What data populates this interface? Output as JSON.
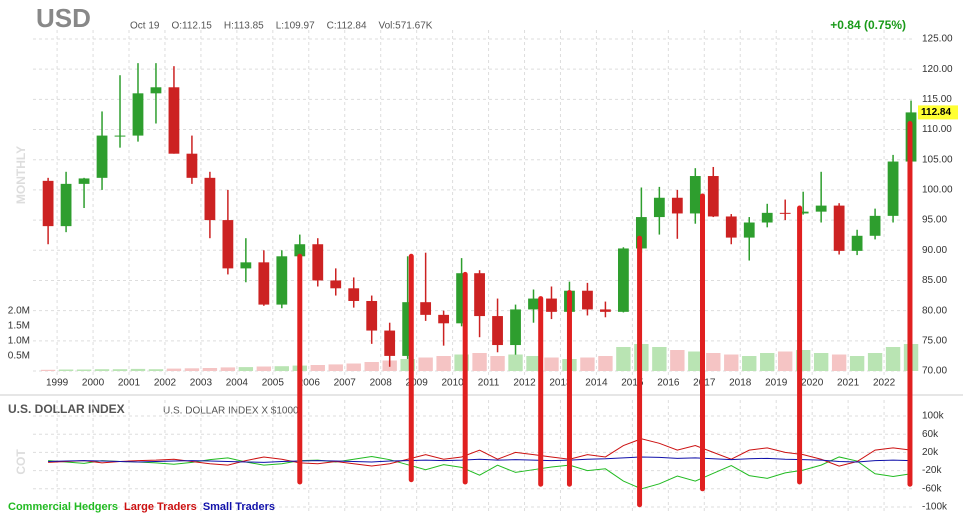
{
  "chart_data": {
    "type": "candlestick",
    "title": "USD",
    "header": [
      "Oct 19",
      "O:112.15",
      "H:113.85",
      "L:109.97",
      "C:112.84",
      "Vol:571.67K"
    ],
    "change": "+0.84 (0.75%)",
    "period_label": "MONTHLY",
    "last_price": 112.84,
    "up_color": "#2e9e2e",
    "down_color": "#cc2222",
    "x": [
      1998.75,
      1999.25,
      1999.75,
      2000.25,
      2000.75,
      2001.25,
      2001.75,
      2002.25,
      2002.75,
      2003.25,
      2003.75,
      2004.25,
      2004.75,
      2005.25,
      2005.75,
      2006.25,
      2006.75,
      2007.25,
      2007.75,
      2008.25,
      2008.75,
      2009.25,
      2009.75,
      2010.25,
      2010.75,
      2011.25,
      2011.75,
      2012.25,
      2012.75,
      2013.25,
      2013.75,
      2014.25,
      2014.75,
      2015.25,
      2015.75,
      2016.25,
      2016.75,
      2017.25,
      2017.75,
      2018.25,
      2018.75,
      2019.25,
      2019.75,
      2020.25,
      2020.75,
      2021.25,
      2021.75,
      2022.25,
      2022.75
    ],
    "open": [
      101.5,
      94,
      101,
      102,
      109,
      109,
      116,
      117,
      106,
      102,
      95,
      87,
      88,
      81,
      89,
      91,
      85,
      83.7,
      81.6,
      76.7,
      72.5,
      81.4,
      79.3,
      77.9,
      86.2,
      79.1,
      74.3,
      80.2,
      82,
      79.8,
      83.3,
      80.2,
      79.8,
      90.3,
      95.5,
      98.7,
      96.1,
      102.3,
      95.6,
      92.1,
      94.6,
      96.2,
      96.1,
      96.4,
      97.4,
      89.9,
      92.4,
      95.7,
      104.7
    ],
    "high": [
      102,
      103,
      102,
      113,
      119,
      121,
      121,
      120.5,
      109,
      103,
      100,
      92,
      90,
      90,
      92.6,
      92,
      87,
      85.5,
      82.5,
      78,
      89,
      89.6,
      80,
      88.7,
      86.7,
      82,
      81,
      83.5,
      84,
      84.8,
      84.6,
      81.5,
      90.5,
      100.4,
      100.5,
      100,
      103.6,
      103.8,
      96,
      95.5,
      97.7,
      98.4,
      99.7,
      103,
      97.8,
      93.4,
      96.9,
      105.8,
      114.8
    ],
    "low": [
      91,
      93,
      97,
      100,
      107,
      108,
      111,
      106,
      101,
      92,
      86,
      84.7,
      80.8,
      80.4,
      86,
      84,
      82.5,
      80.5,
      74.5,
      70.7,
      72,
      78.3,
      74.2,
      77.4,
      75.6,
      73.1,
      72.7,
      78,
      78.6,
      79.1,
      79.2,
      78.9,
      79.7,
      89.6,
      92.6,
      91.9,
      94.4,
      95.5,
      91,
      88.3,
      93.8,
      95,
      95.9,
      94.6,
      89.3,
      89.2,
      91.8,
      94.6,
      103.4
    ],
    "close": [
      94,
      101,
      101.9,
      109,
      109,
      116,
      117,
      106,
      102,
      95,
      87,
      88,
      81,
      89,
      91,
      85,
      83.7,
      81.6,
      76.7,
      72.5,
      81.4,
      79.3,
      77.9,
      86.2,
      79.1,
      74.3,
      80.2,
      82,
      79.8,
      83.3,
      80.2,
      79.8,
      90.3,
      95.5,
      98.7,
      96.1,
      102.3,
      95.6,
      92.1,
      94.6,
      96.2,
      96.1,
      96.4,
      97.4,
      89.9,
      92.4,
      95.7,
      104.7,
      112.84
    ],
    "xlim": [
      1998.33,
      2022.86
    ],
    "xticks": [
      1999,
      2000,
      2001,
      2002,
      2003,
      2004,
      2005,
      2006,
      2007,
      2008,
      2009,
      2010,
      2011,
      2012,
      2013,
      2014,
      2015,
      2016,
      2017,
      2018,
      2019,
      2020,
      2021,
      2022
    ],
    "ylim": [
      70,
      125
    ],
    "yticks": [
      {
        "value": 70,
        "label": "70.00"
      },
      {
        "value": 75,
        "label": "75.00"
      },
      {
        "value": 80,
        "label": "80.00"
      },
      {
        "value": 85,
        "label": "85.00"
      },
      {
        "value": 90,
        "label": "90.00"
      },
      {
        "value": 95,
        "label": "95.00"
      },
      {
        "value": 100,
        "label": "100.00"
      },
      {
        "value": 105,
        "label": "105.00"
      },
      {
        "value": 110,
        "label": "110.00"
      },
      {
        "value": 115,
        "label": "115.00"
      },
      {
        "value": 120,
        "label": "120.00"
      },
      {
        "value": 125,
        "label": "125.00"
      }
    ],
    "grid": true,
    "volume": {
      "values": [
        40000,
        50000,
        50000,
        60000,
        60000,
        70000,
        60000,
        80000,
        90000,
        100000,
        120000,
        130000,
        150000,
        160000,
        180000,
        200000,
        220000,
        250000,
        300000,
        350000,
        400000,
        450000,
        500000,
        550000,
        600000,
        500000,
        550000,
        500000,
        450000,
        400000,
        450000,
        500000,
        800000,
        900000,
        800000,
        700000,
        650000,
        600000,
        550000,
        500000,
        600000,
        650000,
        700000,
        600000,
        550000,
        500000,
        600000,
        800000,
        900000
      ],
      "up_color": "#b9e4b3",
      "down_color": "#f5c4c4",
      "ylim": [
        0,
        2000000
      ],
      "yticks": [
        {
          "value": 500000,
          "label": "0.5M"
        },
        {
          "value": 1000000,
          "label": "1.0M"
        },
        {
          "value": 1500000,
          "label": "1.5M"
        },
        {
          "value": 2000000,
          "label": "2.0M"
        }
      ]
    },
    "highlights": {
      "color": "#e02020",
      "x": [
        2005.75,
        2008.85,
        2010.35,
        2012.45,
        2013.25,
        2015.2,
        2016.95,
        2019.65,
        2022.72
      ],
      "top": [
        89,
        89,
        86,
        82,
        83,
        92,
        99,
        97,
        111
      ],
      "bottom": [
        -45000,
        -40000,
        -45000,
        -50000,
        -50000,
        -95000,
        -60000,
        -45000,
        -50000
      ]
    },
    "cot": {
      "title": "U.S. DOLLAR INDEX",
      "subtitle": "U.S. DOLLAR INDEX X $1000",
      "side_label": "COT",
      "ylim": [
        -100000,
        100000
      ],
      "yticks": [
        {
          "value": 100000,
          "label": "100k"
        },
        {
          "value": 60000,
          "label": "60k"
        },
        {
          "value": 20000,
          "label": "20k"
        },
        {
          "value": -20000,
          "label": "-20k"
        },
        {
          "value": -60000,
          "label": "-60k"
        },
        {
          "value": -100000,
          "label": "-100k"
        }
      ],
      "series": [
        {
          "name": "Commercial Hedgers",
          "color": "#22bb22",
          "values": [
            2000,
            -1000,
            -4000,
            2000,
            0,
            -1000,
            -3000,
            -6000,
            -2000,
            4000,
            8000,
            -1000,
            -8000,
            -5000,
            2000,
            3000,
            -1000,
            5000,
            11000,
            4000,
            -7000,
            -18000,
            -7000,
            -13000,
            -30000,
            -8000,
            -24000,
            -18000,
            -12000,
            -8000,
            -20000,
            -16000,
            -43000,
            -60000,
            -49000,
            -32000,
            -43000,
            -26000,
            -9000,
            -31000,
            -37000,
            -25000,
            -19000,
            -8000,
            10000,
            1000,
            -27000,
            -33000,
            -27000
          ]
        },
        {
          "name": "Large Traders",
          "color": "#cc1111",
          "values": [
            -2000,
            0,
            2000,
            -3000,
            0,
            2000,
            3000,
            5000,
            0,
            -5000,
            -8000,
            2000,
            10000,
            5000,
            -3000,
            -5000,
            0,
            -5000,
            -10000,
            -5000,
            5000,
            15000,
            5000,
            10000,
            25000,
            5000,
            20000,
            15000,
            10000,
            5000,
            15000,
            10000,
            35000,
            50000,
            40000,
            25000,
            35000,
            20000,
            5000,
            25000,
            30000,
            20000,
            15000,
            5000,
            -10000,
            0,
            25000,
            30000,
            25000
          ]
        },
        {
          "name": "Small Traders",
          "color": "#1111aa",
          "values": [
            0,
            1000,
            2000,
            1000,
            0,
            -1000,
            0,
            1000,
            2000,
            1000,
            0,
            -1000,
            -2000,
            0,
            1000,
            2000,
            1000,
            0,
            -1000,
            1000,
            2000,
            3000,
            2000,
            3000,
            5000,
            3000,
            4000,
            3000,
            2000,
            3000,
            5000,
            6000,
            8000,
            10000,
            9000,
            7000,
            8000,
            6000,
            4000,
            6000,
            7000,
            5000,
            4000,
            3000,
            0,
            -1000,
            2000,
            3000,
            2000
          ]
        }
      ]
    }
  }
}
